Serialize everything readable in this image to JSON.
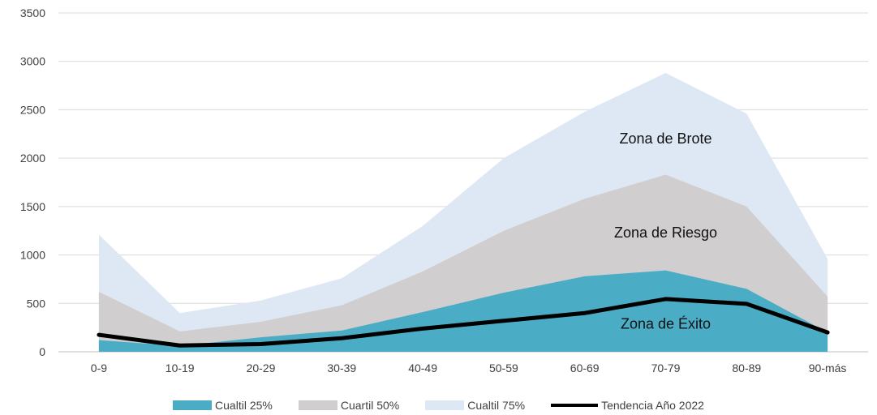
{
  "chart_data": {
    "type": "area",
    "categories": [
      "0-9",
      "10-19",
      "20-29",
      "30-39",
      "40-49",
      "50-59",
      "60-69",
      "70-79",
      "80-89",
      "90-más"
    ],
    "ylim": [
      0,
      3500
    ],
    "yticks": [
      0,
      500,
      1000,
      1500,
      2000,
      2500,
      3000,
      3500
    ],
    "grid": true,
    "legend_position": "bottom",
    "series": [
      {
        "name": "Cualtil 25%",
        "type": "area",
        "color": "#4BACC6",
        "values": [
          120,
          60,
          150,
          220,
          410,
          610,
          780,
          840,
          650,
          200
        ]
      },
      {
        "name": "Cuartil 50%",
        "type": "area",
        "color": "#D0CECE",
        "values": [
          620,
          210,
          310,
          480,
          830,
          1250,
          1580,
          1830,
          1500,
          570
        ]
      },
      {
        "name": "Cualtil 75%",
        "type": "area",
        "color": "#DEE8F4",
        "values": [
          1210,
          400,
          530,
          760,
          1300,
          2000,
          2480,
          2880,
          2460,
          960
        ]
      },
      {
        "name": "Tendencia Año 2022",
        "type": "line",
        "color": "#000000",
        "values": [
          175,
          65,
          80,
          140,
          240,
          320,
          400,
          545,
          495,
          200
        ]
      }
    ],
    "annotations": [
      {
        "text": "Zona de Brote",
        "category": "70-79",
        "y": 2150
      },
      {
        "text": "Zona de Riesgo",
        "category": "70-79",
        "y": 1180
      },
      {
        "text": "Zona de Éxito",
        "category": "70-79",
        "y": 240
      }
    ]
  }
}
